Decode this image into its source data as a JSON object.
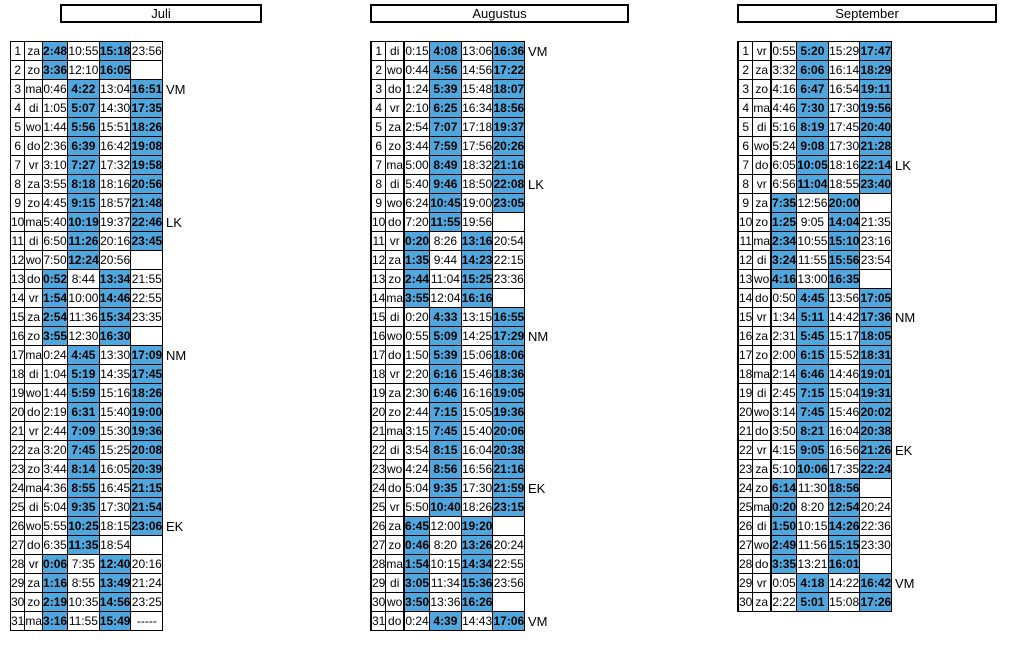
{
  "months": [
    {
      "title": "Juli",
      "rows": [
        [
          "1",
          "za",
          "2:48",
          "10:55",
          "15:18",
          "23:56",
          ""
        ],
        [
          "2",
          "zo",
          "3:36",
          "12:10",
          "16:05",
          "",
          ""
        ],
        [
          "3",
          "ma",
          "0:46",
          "4:22",
          "13:04",
          "16:51",
          "VM"
        ],
        [
          "4",
          "di",
          "1:05",
          "5:07",
          "14:30",
          "17:35",
          ""
        ],
        [
          "5",
          "wo",
          "1:44",
          "5:56",
          "15:51",
          "18:26",
          ""
        ],
        [
          "6",
          "do",
          "2:36",
          "6:39",
          "16:42",
          "19:08",
          ""
        ],
        [
          "7",
          "vr",
          "3:10",
          "7:27",
          "17:32",
          "19:58",
          ""
        ],
        [
          "8",
          "za",
          "3:55",
          "8:18",
          "18:16",
          "20:56",
          ""
        ],
        [
          "9",
          "zo",
          "4:45",
          "9:15",
          "18:57",
          "21:48",
          ""
        ],
        [
          "10",
          "ma",
          "5:40",
          "10:19",
          "19:37",
          "22:46",
          "LK"
        ],
        [
          "11",
          "di",
          "6:50",
          "11:26",
          "20:16",
          "23:45",
          ""
        ],
        [
          "12",
          "wo",
          "7:50",
          "12:24",
          "20:56",
          "",
          ""
        ],
        [
          "13",
          "do",
          "0:52",
          "8:44",
          "13:34",
          "21:55",
          ""
        ],
        [
          "14",
          "vr",
          "1:54",
          "10:00",
          "14:46",
          "22:55",
          ""
        ],
        [
          "15",
          "za",
          "2:54",
          "11:36",
          "15:34",
          "23:35",
          ""
        ],
        [
          "16",
          "zo",
          "3:55",
          "12:30",
          "16:30",
          "",
          ""
        ],
        [
          "17",
          "ma",
          "0:24",
          "4:45",
          "13:30",
          "17:09",
          "NM"
        ],
        [
          "18",
          "di",
          "1:04",
          "5:19",
          "14:35",
          "17:45",
          ""
        ],
        [
          "19",
          "wo",
          "1:44",
          "5:59",
          "15:16",
          "18:26",
          ""
        ],
        [
          "20",
          "do",
          "2:19",
          "6:31",
          "15:40",
          "19:00",
          ""
        ],
        [
          "21",
          "vr",
          "2:44",
          "7:09",
          "15:30",
          "19:36",
          ""
        ],
        [
          "22",
          "za",
          "3:20",
          "7:45",
          "15:25",
          "20:08",
          ""
        ],
        [
          "23",
          "zo",
          "3:44",
          "8:14",
          "16:05",
          "20:39",
          ""
        ],
        [
          "24",
          "ma",
          "4:36",
          "8:55",
          "16:45",
          "21:15",
          ""
        ],
        [
          "25",
          "di",
          "5:04",
          "9:35",
          "17:30",
          "21:54",
          ""
        ],
        [
          "26",
          "wo",
          "5:55",
          "10:25",
          "18:15",
          "23:06",
          "EK"
        ],
        [
          "27",
          "do",
          "6:35",
          "11:35",
          "18:54",
          "",
          ""
        ],
        [
          "28",
          "vr",
          "0:06",
          "7:35",
          "12:40",
          "20:16",
          ""
        ],
        [
          "29",
          "za",
          "1:16",
          "8:55",
          "13:49",
          "21:24",
          ""
        ],
        [
          "30",
          "zo",
          "2:19",
          "10:35",
          "14:56",
          "23:25",
          ""
        ],
        [
          "31",
          "ma",
          "3:16",
          "11:55",
          "15:49",
          "-----",
          ""
        ]
      ]
    },
    {
      "title": "Augustus",
      "rows": [
        [
          "1",
          "di",
          "0:15",
          "4:08",
          "13:06",
          "16:36",
          "VM"
        ],
        [
          "2",
          "wo",
          "0:44",
          "4:56",
          "14:56",
          "17:22",
          ""
        ],
        [
          "3",
          "do",
          "1:24",
          "5:39",
          "15:48",
          "18:07",
          ""
        ],
        [
          "4",
          "vr",
          "2:10",
          "6:25",
          "16:34",
          "18:56",
          ""
        ],
        [
          "5",
          "za",
          "2:54",
          "7:07",
          "17:18",
          "19:37",
          ""
        ],
        [
          "6",
          "zo",
          "3:44",
          "7:59",
          "17:56",
          "20:26",
          ""
        ],
        [
          "7",
          "ma",
          "5:00",
          "8:49",
          "18:32",
          "21:16",
          ""
        ],
        [
          "8",
          "di",
          "5:40",
          "9:46",
          "18:50",
          "22:08",
          "LK"
        ],
        [
          "9",
          "wo",
          "6:24",
          "10:45",
          "19:00",
          "23:05",
          ""
        ],
        [
          "10",
          "do",
          "7:20",
          "11:55",
          "19:56",
          "",
          ""
        ],
        [
          "11",
          "vr",
          "0:20",
          "8:26",
          "13:16",
          "20:54",
          ""
        ],
        [
          "12",
          "za",
          "1:35",
          "9:44",
          "14:23",
          "22:15",
          ""
        ],
        [
          "13",
          "zo",
          "2:44",
          "11:04",
          "15:25",
          "23:36",
          ""
        ],
        [
          "14",
          "ma",
          "3:55",
          "12:04",
          "16:16",
          "",
          ""
        ],
        [
          "15",
          "di",
          "0:20",
          "4:33",
          "13:15",
          "16:55",
          ""
        ],
        [
          "16",
          "wo",
          "0:55",
          "5:09",
          "14:25",
          "17:29",
          "NM"
        ],
        [
          "17",
          "do",
          "1:50",
          "5:39",
          "15:06",
          "18:06",
          ""
        ],
        [
          "18",
          "vr",
          "2:20",
          "6:16",
          "15:46",
          "18:36",
          ""
        ],
        [
          "19",
          "za",
          "2:30",
          "6:46",
          "16:16",
          "19:05",
          ""
        ],
        [
          "20",
          "zo",
          "2:44",
          "7:15",
          "15:05",
          "19:36",
          ""
        ],
        [
          "21",
          "ma",
          "3:15",
          "7:45",
          "15:40",
          "20:06",
          ""
        ],
        [
          "22",
          "di",
          "3:54",
          "8:15",
          "16:04",
          "20:38",
          ""
        ],
        [
          "23",
          "wo",
          "4:24",
          "8:56",
          "16:56",
          "21:16",
          ""
        ],
        [
          "24",
          "do",
          "5:04",
          "9:35",
          "17:30",
          "21:59",
          "EK"
        ],
        [
          "25",
          "vr",
          "5:50",
          "10:40",
          "18:26",
          "23:15",
          ""
        ],
        [
          "26",
          "za",
          "6:45",
          "12:00",
          "19:20",
          "",
          ""
        ],
        [
          "27",
          "zo",
          "0:46",
          "8:20",
          "13:26",
          "20:24",
          ""
        ],
        [
          "28",
          "ma",
          "1:54",
          "10:15",
          "14:34",
          "22:55",
          ""
        ],
        [
          "29",
          "di",
          "3:05",
          "11:34",
          "15:36",
          "23:56",
          ""
        ],
        [
          "30",
          "wo",
          "3:50",
          "13:36",
          "16:26",
          "",
          ""
        ],
        [
          "31",
          "do",
          "0:24",
          "4:39",
          "14:43",
          "17:06",
          "VM"
        ]
      ]
    },
    {
      "title": "September",
      "rows": [
        [
          "1",
          "vr",
          "0:55",
          "5:20",
          "15:29",
          "17:47",
          ""
        ],
        [
          "2",
          "za",
          "3:32",
          "6:06",
          "16:14",
          "18:29",
          ""
        ],
        [
          "3",
          "zo",
          "4:16",
          "6:47",
          "16:54",
          "19:11",
          ""
        ],
        [
          "4",
          "ma",
          "4:46",
          "7:30",
          "17:30",
          "19:56",
          ""
        ],
        [
          "5",
          "di",
          "5:16",
          "8:19",
          "17:45",
          "20:40",
          ""
        ],
        [
          "6",
          "wo",
          "5:24",
          "9:08",
          "17:30",
          "21:28",
          ""
        ],
        [
          "7",
          "do",
          "6:05",
          "10:05",
          "18:16",
          "22:14",
          "LK"
        ],
        [
          "8",
          "vr",
          "6:56",
          "11:04",
          "18:55",
          "23:40",
          ""
        ],
        [
          "9",
          "za",
          "7:35",
          "12:56",
          "20:00",
          "",
          ""
        ],
        [
          "10",
          "zo",
          "1:25",
          "9:05",
          "14:04",
          "21:35",
          ""
        ],
        [
          "11",
          "ma",
          "2:34",
          "10:55",
          "15:10",
          "23:16",
          ""
        ],
        [
          "12",
          "di",
          "3:24",
          "11:55",
          "15:56",
          "23:54",
          ""
        ],
        [
          "13",
          "wo",
          "4:16",
          "13:00",
          "16:35",
          "",
          ""
        ],
        [
          "14",
          "do",
          "0:50",
          "4:45",
          "13:56",
          "17:05",
          ""
        ],
        [
          "15",
          "vr",
          "1:34",
          "5:11",
          "14:42",
          "17:36",
          "NM"
        ],
        [
          "16",
          "za",
          "2:31",
          "5:45",
          "15:17",
          "18:05",
          ""
        ],
        [
          "17",
          "zo",
          "2:00",
          "6:15",
          "15:52",
          "18:31",
          ""
        ],
        [
          "18",
          "ma",
          "2:14",
          "6:46",
          "14:46",
          "19:01",
          ""
        ],
        [
          "19",
          "di",
          "2:45",
          "7:15",
          "15:04",
          "19:31",
          ""
        ],
        [
          "20",
          "wo",
          "3:14",
          "7:45",
          "15:46",
          "20:02",
          ""
        ],
        [
          "21",
          "do",
          "3:50",
          "8:21",
          "16:04",
          "20:38",
          ""
        ],
        [
          "22",
          "vr",
          "4:15",
          "9:05",
          "16:56",
          "21:26",
          "EK"
        ],
        [
          "23",
          "za",
          "5:10",
          "10:06",
          "17:35",
          "22:24",
          ""
        ],
        [
          "24",
          "zo",
          "6:14",
          "11:30",
          "18:56",
          "",
          ""
        ],
        [
          "25",
          "ma",
          "0:20",
          "8:20",
          "12:54",
          "20:24",
          ""
        ],
        [
          "26",
          "di",
          "1:50",
          "10:15",
          "14:26",
          "22:36",
          ""
        ],
        [
          "27",
          "wo",
          "2:49",
          "11:56",
          "15:15",
          "23:30",
          ""
        ],
        [
          "28",
          "do",
          "3:35",
          "13:21",
          "16:01",
          "",
          ""
        ],
        [
          "29",
          "vr",
          "0:05",
          "4:18",
          "14:22",
          "16:42",
          "VM"
        ],
        [
          "30",
          "za",
          "2:22",
          "5:01",
          "15:08",
          "17:26",
          ""
        ]
      ]
    }
  ],
  "colors": {
    "high_tide_fill": "#4fa7dd",
    "border": "#000000"
  }
}
